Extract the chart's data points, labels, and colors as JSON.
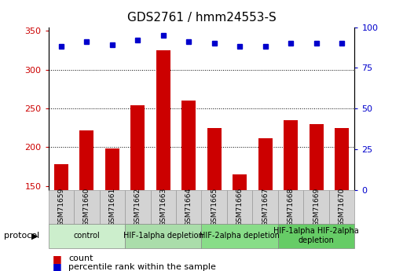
{
  "title": "GDS2761 / hmm24553-S",
  "samples": [
    "GSM71659",
    "GSM71660",
    "GSM71661",
    "GSM71662",
    "GSM71663",
    "GSM71664",
    "GSM71665",
    "GSM71666",
    "GSM71667",
    "GSM71668",
    "GSM71669",
    "GSM71670"
  ],
  "counts": [
    178,
    222,
    198,
    254,
    325,
    260,
    225,
    165,
    211,
    235,
    230,
    225
  ],
  "percentile_ranks": [
    88,
    91,
    89,
    92,
    95,
    91,
    90,
    88,
    88,
    90,
    90,
    90
  ],
  "ylim_left": [
    145,
    355
  ],
  "ylim_right": [
    0,
    100
  ],
  "yticks_left": [
    150,
    200,
    250,
    300,
    350
  ],
  "yticks_right": [
    0,
    25,
    50,
    75,
    100
  ],
  "bar_color": "#cc0000",
  "dot_color": "#0000cc",
  "plot_bg": "#ffffff",
  "protocols": [
    {
      "label": "control",
      "start": 0,
      "end": 2,
      "color": "#cceecc"
    },
    {
      "label": "HIF-1alpha depletion",
      "start": 3,
      "end": 5,
      "color": "#aaddaa"
    },
    {
      "label": "HIF-2alpha depletion",
      "start": 6,
      "end": 8,
      "color": "#88dd88"
    },
    {
      "label": "HIF-1alpha HIF-2alpha\ndepletion",
      "start": 9,
      "end": 11,
      "color": "#66cc66"
    }
  ],
  "legend_count_label": "count",
  "legend_pct_label": "percentile rank within the sample"
}
